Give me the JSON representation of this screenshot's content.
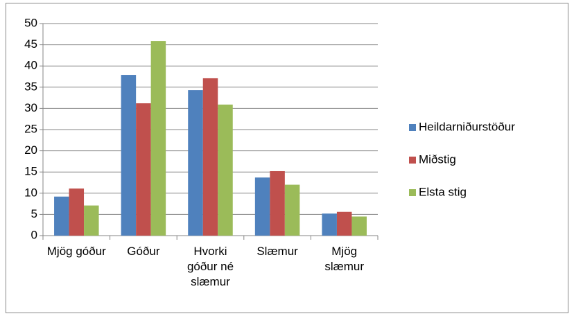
{
  "chart_data": {
    "type": "bar",
    "categories": [
      "Mjög góður",
      "Góður",
      "Hvorki góður né slæmur",
      "Slæmur",
      "Mjög slæmur"
    ],
    "series": [
      {
        "name": "Heildarniðurstöður",
        "color": "#4f81bd",
        "values": [
          9.2,
          37.9,
          34.3,
          13.7,
          5.2
        ]
      },
      {
        "name": "Miðstig",
        "color": "#c0504d",
        "values": [
          11.1,
          31.2,
          37.1,
          15.2,
          5.6
        ]
      },
      {
        "name": "Elsta stig",
        "color": "#9bbb59",
        "values": [
          7.1,
          45.9,
          30.9,
          12.0,
          4.5
        ]
      }
    ],
    "ylim": [
      0,
      50
    ],
    "yticks": [
      0,
      5,
      10,
      15,
      20,
      25,
      30,
      35,
      40,
      45,
      50
    ],
    "grid": true,
    "legend": "right"
  }
}
